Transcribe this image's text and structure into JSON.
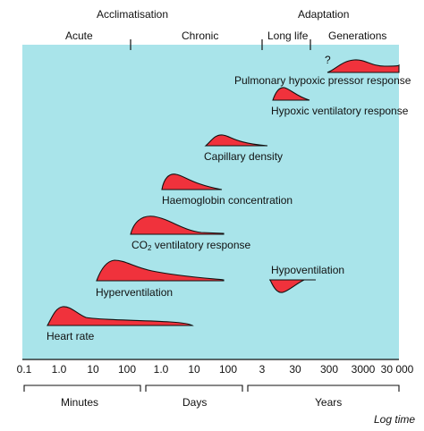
{
  "header": {
    "acclimatisation": "Acclimatisation",
    "adaptation": "Adaptation",
    "acute": "Acute",
    "chronic": "Chronic",
    "long_life": "Long life",
    "generations": "Generations"
  },
  "responses": {
    "pulmonary": "Pulmonary hypoxic pressor response",
    "pulmonary_mark": "?",
    "hypoxic_ventilatory": "Hypoxic ventilatory response",
    "capillary": "Capillary density",
    "haemoglobin": "Haemoglobin concentration",
    "co2_prefix": "CO",
    "co2_sub": "2",
    "co2_suffix": " ventilatory response",
    "hyperventilation": "Hyperventilation",
    "hypoventilation": "Hypoventilation",
    "heart_rate": "Heart rate"
  },
  "axis": {
    "ticks": [
      "0.1",
      "1.0",
      "10",
      "100",
      "1.0",
      "10",
      "100",
      "3",
      "30",
      "300",
      "3000",
      "30 000"
    ],
    "groups": [
      "Minutes",
      "Days",
      "Years"
    ],
    "log_label": "Log time"
  },
  "colors": {
    "panel": "#a9e4ea",
    "curve_fill": "#f0323c",
    "line": "#111111"
  }
}
